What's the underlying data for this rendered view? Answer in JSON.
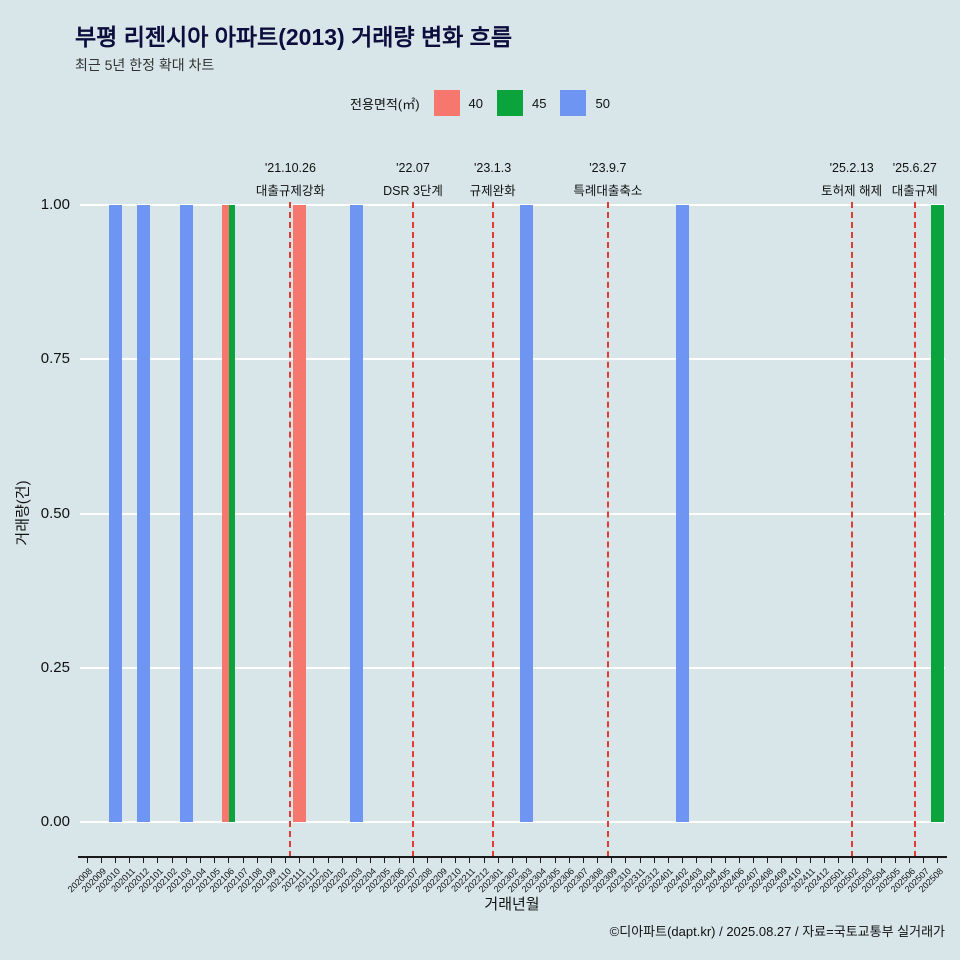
{
  "title": "부평 리젠시아 아파트(2013) 거래량 변화 흐름",
  "subtitle": "최근 5년 한정 확대 차트",
  "footer": "©디아파트(dapt.kr) / 2025.08.27 / 자료=국토교통부 실거래가",
  "legend": {
    "label": "전용면적(㎡)"
  },
  "chart_data": {
    "type": "bar",
    "title": "부평 리젠시아 아파트(2013) 거래량 변화 흐름",
    "xlabel": "거래년월",
    "ylabel": "거래량(건)",
    "ylim": [
      0,
      1
    ],
    "grid": "horizontal-white",
    "legend_position": "top-center",
    "annotation_color": "#e23b31",
    "yticks": [
      {
        "v": 0,
        "label": "0.00"
      },
      {
        "v": 0.25,
        "label": "0.25"
      },
      {
        "v": 0.5,
        "label": "0.50"
      },
      {
        "v": 0.75,
        "label": "0.75"
      },
      {
        "v": 1,
        "label": "1.00"
      }
    ],
    "categories": [
      "202008",
      "202009",
      "202010",
      "202011",
      "202012",
      "202101",
      "202102",
      "202103",
      "202104",
      "202105",
      "202106",
      "202107",
      "202108",
      "202109",
      "202110",
      "202111",
      "202112",
      "202201",
      "202202",
      "202203",
      "202204",
      "202205",
      "202206",
      "202207",
      "202208",
      "202209",
      "202210",
      "202211",
      "202212",
      "202301",
      "202302",
      "202303",
      "202304",
      "202305",
      "202306",
      "202307",
      "202308",
      "202309",
      "202310",
      "202311",
      "202312",
      "202401",
      "202402",
      "202403",
      "202404",
      "202405",
      "202406",
      "202407",
      "202408",
      "202409",
      "202410",
      "202411",
      "202412",
      "202501",
      "202502",
      "202503",
      "202504",
      "202505",
      "202506",
      "202507",
      "202508"
    ],
    "series": [
      {
        "name": "40",
        "color": "#f5776e",
        "points": {
          "202106": 1,
          "202111": 1
        }
      },
      {
        "name": "45",
        "color": "#0aa33c",
        "points": {
          "202106": 1,
          "202508": 1
        }
      },
      {
        "name": "50",
        "color": "#6d95f1",
        "points": {
          "202010": 1,
          "202012": 1,
          "202103": 1,
          "202203": 1,
          "202303": 1,
          "202402": 1
        }
      }
    ],
    "annotations": [
      {
        "date_label": "'21.10.26",
        "text": "대출규제강화",
        "month": "202110",
        "day": 26
      },
      {
        "date_label": "'22.07",
        "text": "DSR 3단계",
        "month": "202207",
        "day": 15
      },
      {
        "date_label": "'23.1.3",
        "text": "규제완화",
        "month": "202301",
        "day": 3
      },
      {
        "date_label": "'23.9.7",
        "text": "특례대출축소",
        "month": "202309",
        "day": 7
      },
      {
        "date_label": "'25.2.13",
        "text": "토허제 해제",
        "month": "202502",
        "day": 13
      },
      {
        "date_label": "'25.6.27",
        "text": "대출규제",
        "month": "202506",
        "day": 27
      }
    ]
  }
}
